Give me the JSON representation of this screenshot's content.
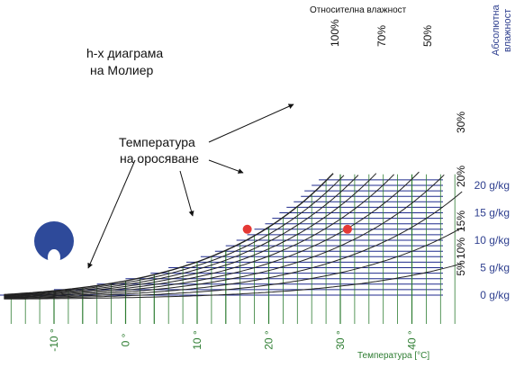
{
  "chart_data": {
    "type": "line",
    "title": "h-x диаграма на Молиер",
    "title_lines": [
      "h-x диаграма",
      "на Молиер"
    ],
    "xlabel": "Температура [°C]",
    "ylabel": "Абсолютна влажност",
    "ylabel_lines": [
      "Абсолютна",
      "влажност"
    ],
    "relative_humidity_label": "Относителна влажност",
    "dew_point_label_lines": [
      "Температура",
      "на оросяване"
    ],
    "xlim": [
      -17,
      47
    ],
    "ylim": [
      -2,
      26
    ],
    "x_ticks": [
      {
        "value": -10,
        "label": "-10 °"
      },
      {
        "value": 0,
        "label": "0 °"
      },
      {
        "value": 10,
        "label": "10 °"
      },
      {
        "value": 20,
        "label": "20 °"
      },
      {
        "value": 30,
        "label": "30 °"
      },
      {
        "value": 40,
        "label": "40 °"
      }
    ],
    "y_ticks": [
      {
        "value": 0,
        "label": "0 g/kg"
      },
      {
        "value": 5,
        "label": "5 g/kg"
      },
      {
        "value": 10,
        "label": "10 g/kg"
      },
      {
        "value": 15,
        "label": "15 g/kg"
      },
      {
        "value": 20,
        "label": "20 g/kg"
      }
    ],
    "humidity_curves": [
      {
        "rh": 10,
        "label": "10%"
      },
      {
        "rh": 20,
        "label": "20%"
      },
      {
        "rh": 30,
        "label": "30%"
      },
      {
        "rh": 40,
        "label": ""
      },
      {
        "rh": 50,
        "label": "50%"
      },
      {
        "rh": 60,
        "label": ""
      },
      {
        "rh": 70,
        "label": "70%"
      },
      {
        "rh": 80,
        "label": ""
      },
      {
        "rh": 90,
        "label": ""
      },
      {
        "rh": 100,
        "label": "100%"
      }
    ],
    "side_rh_labels": [
      {
        "rh": 5,
        "label": "5%"
      },
      {
        "rh": 10,
        "label": "10%"
      },
      {
        "rh": 15,
        "label": "15%"
      },
      {
        "rh": 20,
        "label": "20%"
      },
      {
        "rh": 30,
        "label": "30%"
      }
    ],
    "points": [
      {
        "x": 17,
        "y": 12
      },
      {
        "x": 31,
        "y": 12
      }
    ],
    "colors": {
      "humidity_lines": "#1f2a8c",
      "temperature_lines": "#2e7d32",
      "curves": "#222222",
      "points": "#e53935",
      "logo": "#2e4a9a",
      "y_labels": "#2e3f8f",
      "x_labels": "#2e7d32"
    }
  }
}
